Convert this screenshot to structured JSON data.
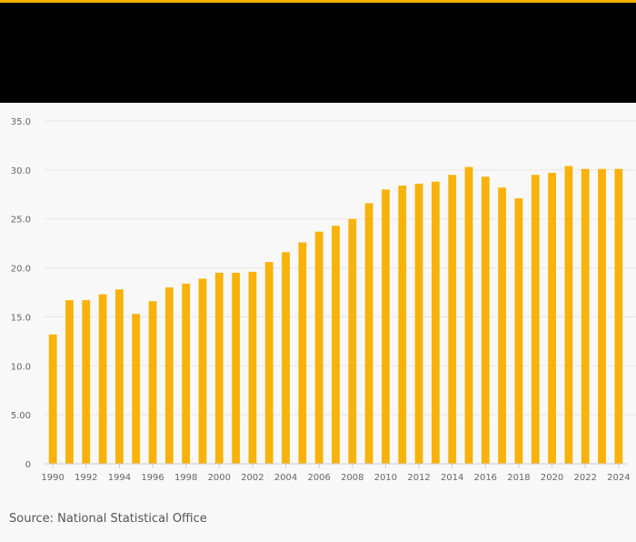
{
  "colors": {
    "accent": "#f5b000",
    "bar": "#f9b20a",
    "header_bg": "#000000",
    "background": "#f8f8f8",
    "grid": "#e6e6e6",
    "axis": "#cccccc",
    "tick_text": "#666666"
  },
  "source": "Source: National Statistical Office",
  "chart_data": {
    "type": "bar",
    "title": "",
    "xlabel": "",
    "ylabel": "",
    "ylim": [
      0,
      35
    ],
    "yticks": [
      0,
      5,
      10,
      15,
      20,
      25,
      30,
      35
    ],
    "ytick_labels": [
      "0",
      "5.00",
      "10.0",
      "15.0",
      "20.0",
      "25.0",
      "30.0",
      "35.0"
    ],
    "grid": true,
    "categories": [
      "1990",
      "1991",
      "1992",
      "1993",
      "1994",
      "1995",
      "1996",
      "1997",
      "1998",
      "1999",
      "2000",
      "2001",
      "2002",
      "2003",
      "2004",
      "2005",
      "2006",
      "2007",
      "2008",
      "2009",
      "2010",
      "2011",
      "2012",
      "2013",
      "2014",
      "2015",
      "2016",
      "2017",
      "2018",
      "2019",
      "2020",
      "2021",
      "2022",
      "2023",
      "2024"
    ],
    "xtick_labels": [
      "1990",
      "1992",
      "1994",
      "1996",
      "1998",
      "2000",
      "2002",
      "2004",
      "2006",
      "2008",
      "2010",
      "2012",
      "2014",
      "2016",
      "2018",
      "2020",
      "2022",
      "2024"
    ],
    "values": [
      13.2,
      16.7,
      16.7,
      17.3,
      17.8,
      15.3,
      16.6,
      18.0,
      18.4,
      18.9,
      19.5,
      19.5,
      19.6,
      20.6,
      21.6,
      22.6,
      23.7,
      24.3,
      25.0,
      26.6,
      28.0,
      28.4,
      28.6,
      28.8,
      29.5,
      30.3,
      29.3,
      28.2,
      27.1,
      29.5,
      29.7,
      30.4,
      30.1,
      30.1,
      30.1
    ]
  }
}
